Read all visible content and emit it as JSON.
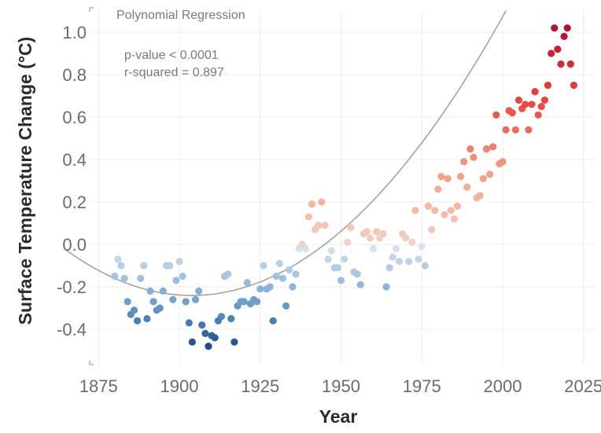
{
  "chart_data": {
    "type": "scatter",
    "title": "Polynomial Regression",
    "annotations": [
      "p-value < 0.0001",
      "r-squared = 0.897"
    ],
    "xlabel": "Year",
    "ylabel": "Surface Temperature Change (°C)",
    "xlim": [
      1865,
      2030
    ],
    "ylim": [
      -0.55,
      1.12
    ],
    "xticks": [
      "1875",
      "1900",
      "1925",
      "1950",
      "1975",
      "2000",
      "2025"
    ],
    "yticks": [
      "1.0",
      "0.8",
      "0.6",
      "0.4",
      "0.2",
      "0.0",
      "-0.2",
      "-0.4"
    ],
    "grid": true,
    "color_encoding": "value (blue = cooler, red = warmer)",
    "colors": {
      "cold": "#1f4e85",
      "neutral": "#dcdcdc",
      "warm": "#b2132f",
      "trend": "#a3a3a3"
    },
    "trendline": {
      "type": "polynomial",
      "degree": 2,
      "coefficients_in_year_minus_1900": [
        -0.2385,
        -0.00108,
        0.000142
      ]
    },
    "points": [
      {
        "x": 1880,
        "y": -0.15
      },
      {
        "x": 1881,
        "y": -0.07
      },
      {
        "x": 1882,
        "y": -0.1
      },
      {
        "x": 1883,
        "y": -0.16
      },
      {
        "x": 1884,
        "y": -0.27
      },
      {
        "x": 1885,
        "y": -0.33
      },
      {
        "x": 1886,
        "y": -0.31
      },
      {
        "x": 1887,
        "y": -0.36
      },
      {
        "x": 1888,
        "y": -0.16
      },
      {
        "x": 1889,
        "y": -0.1
      },
      {
        "x": 1890,
        "y": -0.35
      },
      {
        "x": 1891,
        "y": -0.22
      },
      {
        "x": 1892,
        "y": -0.27
      },
      {
        "x": 1893,
        "y": -0.31
      },
      {
        "x": 1894,
        "y": -0.3
      },
      {
        "x": 1895,
        "y": -0.22
      },
      {
        "x": 1896,
        "y": -0.1
      },
      {
        "x": 1897,
        "y": -0.1
      },
      {
        "x": 1898,
        "y": -0.26
      },
      {
        "x": 1899,
        "y": -0.17
      },
      {
        "x": 1900,
        "y": -0.08
      },
      {
        "x": 1901,
        "y": -0.15
      },
      {
        "x": 1902,
        "y": -0.27
      },
      {
        "x": 1903,
        "y": -0.37
      },
      {
        "x": 1904,
        "y": -0.46
      },
      {
        "x": 1905,
        "y": -0.26
      },
      {
        "x": 1906,
        "y": -0.22
      },
      {
        "x": 1907,
        "y": -0.38
      },
      {
        "x": 1908,
        "y": -0.42
      },
      {
        "x": 1909,
        "y": -0.48
      },
      {
        "x": 1910,
        "y": -0.43
      },
      {
        "x": 1911,
        "y": -0.44
      },
      {
        "x": 1912,
        "y": -0.36
      },
      {
        "x": 1913,
        "y": -0.34
      },
      {
        "x": 1914,
        "y": -0.15
      },
      {
        "x": 1915,
        "y": -0.14
      },
      {
        "x": 1916,
        "y": -0.35
      },
      {
        "x": 1917,
        "y": -0.46
      },
      {
        "x": 1918,
        "y": -0.29
      },
      {
        "x": 1919,
        "y": -0.27
      },
      {
        "x": 1920,
        "y": -0.27
      },
      {
        "x": 1921,
        "y": -0.18
      },
      {
        "x": 1922,
        "y": -0.28
      },
      {
        "x": 1923,
        "y": -0.26
      },
      {
        "x": 1924,
        "y": -0.27
      },
      {
        "x": 1925,
        "y": -0.21
      },
      {
        "x": 1926,
        "y": -0.1
      },
      {
        "x": 1927,
        "y": -0.21
      },
      {
        "x": 1928,
        "y": -0.2
      },
      {
        "x": 1929,
        "y": -0.36
      },
      {
        "x": 1930,
        "y": -0.15
      },
      {
        "x": 1931,
        "y": -0.09
      },
      {
        "x": 1932,
        "y": -0.16
      },
      {
        "x": 1933,
        "y": -0.29
      },
      {
        "x": 1934,
        "y": -0.12
      },
      {
        "x": 1935,
        "y": -0.2
      },
      {
        "x": 1936,
        "y": -0.14
      },
      {
        "x": 1937,
        "y": -0.02
      },
      {
        "x": 1938,
        "y": 0.0
      },
      {
        "x": 1939,
        "y": -0.02
      },
      {
        "x": 1940,
        "y": 0.13
      },
      {
        "x": 1941,
        "y": 0.19
      },
      {
        "x": 1942,
        "y": 0.07
      },
      {
        "x": 1943,
        "y": 0.09
      },
      {
        "x": 1944,
        "y": 0.2
      },
      {
        "x": 1945,
        "y": 0.09
      },
      {
        "x": 1946,
        "y": -0.07
      },
      {
        "x": 1947,
        "y": -0.03
      },
      {
        "x": 1948,
        "y": -0.11
      },
      {
        "x": 1949,
        "y": -0.11
      },
      {
        "x": 1950,
        "y": -0.17
      },
      {
        "x": 1951,
        "y": -0.07
      },
      {
        "x": 1952,
        "y": 0.01
      },
      {
        "x": 1953,
        "y": 0.08
      },
      {
        "x": 1954,
        "y": -0.13
      },
      {
        "x": 1955,
        "y": -0.14
      },
      {
        "x": 1956,
        "y": -0.19
      },
      {
        "x": 1957,
        "y": 0.05
      },
      {
        "x": 1958,
        "y": 0.06
      },
      {
        "x": 1959,
        "y": 0.03
      },
      {
        "x": 1960,
        "y": -0.02
      },
      {
        "x": 1961,
        "y": 0.06
      },
      {
        "x": 1962,
        "y": 0.03
      },
      {
        "x": 1963,
        "y": 0.05
      },
      {
        "x": 1964,
        "y": -0.2
      },
      {
        "x": 1965,
        "y": -0.11
      },
      {
        "x": 1966,
        "y": -0.06
      },
      {
        "x": 1967,
        "y": -0.02
      },
      {
        "x": 1968,
        "y": -0.08
      },
      {
        "x": 1969,
        "y": 0.05
      },
      {
        "x": 1970,
        "y": 0.03
      },
      {
        "x": 1971,
        "y": -0.08
      },
      {
        "x": 1972,
        "y": 0.01
      },
      {
        "x": 1973,
        "y": 0.16
      },
      {
        "x": 1974,
        "y": -0.07
      },
      {
        "x": 1975,
        "y": -0.01
      },
      {
        "x": 1976,
        "y": -0.1
      },
      {
        "x": 1977,
        "y": 0.18
      },
      {
        "x": 1978,
        "y": 0.07
      },
      {
        "x": 1979,
        "y": 0.16
      },
      {
        "x": 1980,
        "y": 0.26
      },
      {
        "x": 1981,
        "y": 0.32
      },
      {
        "x": 1982,
        "y": 0.14
      },
      {
        "x": 1983,
        "y": 0.31
      },
      {
        "x": 1984,
        "y": 0.16
      },
      {
        "x": 1985,
        "y": 0.12
      },
      {
        "x": 1986,
        "y": 0.18
      },
      {
        "x": 1987,
        "y": 0.32
      },
      {
        "x": 1988,
        "y": 0.39
      },
      {
        "x": 1989,
        "y": 0.27
      },
      {
        "x": 1990,
        "y": 0.45
      },
      {
        "x": 1991,
        "y": 0.41
      },
      {
        "x": 1992,
        "y": 0.22
      },
      {
        "x": 1993,
        "y": 0.23
      },
      {
        "x": 1994,
        "y": 0.31
      },
      {
        "x": 1995,
        "y": 0.45
      },
      {
        "x": 1996,
        "y": 0.33
      },
      {
        "x": 1997,
        "y": 0.46
      },
      {
        "x": 1998,
        "y": 0.61
      },
      {
        "x": 1999,
        "y": 0.38
      },
      {
        "x": 2000,
        "y": 0.39
      },
      {
        "x": 2001,
        "y": 0.54
      },
      {
        "x": 2002,
        "y": 0.63
      },
      {
        "x": 2003,
        "y": 0.62
      },
      {
        "x": 2004,
        "y": 0.54
      },
      {
        "x": 2005,
        "y": 0.68
      },
      {
        "x": 2006,
        "y": 0.64
      },
      {
        "x": 2007,
        "y": 0.66
      },
      {
        "x": 2008,
        "y": 0.54
      },
      {
        "x": 2009,
        "y": 0.66
      },
      {
        "x": 2010,
        "y": 0.72
      },
      {
        "x": 2011,
        "y": 0.61
      },
      {
        "x": 2012,
        "y": 0.65
      },
      {
        "x": 2013,
        "y": 0.68
      },
      {
        "x": 2014,
        "y": 0.75
      },
      {
        "x": 2015,
        "y": 0.9
      },
      {
        "x": 2016,
        "y": 1.02
      },
      {
        "x": 2017,
        "y": 0.92
      },
      {
        "x": 2018,
        "y": 0.85
      },
      {
        "x": 2019,
        "y": 0.98
      },
      {
        "x": 2020,
        "y": 1.02
      },
      {
        "x": 2021,
        "y": 0.85
      },
      {
        "x": 2022,
        "y": 0.75
      }
    ]
  }
}
